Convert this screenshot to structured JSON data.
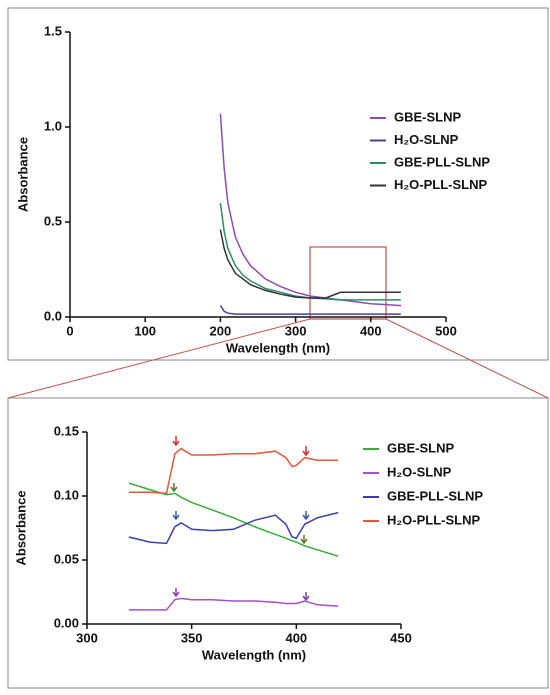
{
  "chart_data": [
    {
      "type": "line",
      "xlabel": "Wavelength (nm)",
      "ylabel": "Absorbance",
      "x": [
        200,
        205,
        210,
        220,
        230,
        240,
        260,
        280,
        300,
        320,
        340,
        360,
        380,
        400,
        420,
        440
      ],
      "series": [
        {
          "name": "GBE-SLNP",
          "color": "#8e4bb0",
          "values": [
            1.07,
            0.78,
            0.6,
            0.42,
            0.33,
            0.27,
            0.2,
            0.16,
            0.13,
            0.11,
            0.1,
            0.09,
            0.08,
            0.07,
            0.065,
            0.06
          ]
        },
        {
          "name": "H₂O-SLNP",
          "color": "#4b3f9e",
          "values": [
            0.06,
            0.03,
            0.02,
            0.015,
            0.015,
            0.015,
            0.015,
            0.015,
            0.015,
            0.015,
            0.015,
            0.015,
            0.015,
            0.015,
            0.015,
            0.015
          ]
        },
        {
          "name": "GBE-PLL-SLNP",
          "color": "#2e8b6e",
          "values": [
            0.6,
            0.45,
            0.36,
            0.27,
            0.22,
            0.19,
            0.15,
            0.13,
            0.11,
            0.1,
            0.095,
            0.09,
            0.09,
            0.09,
            0.09,
            0.09
          ]
        },
        {
          "name": "H₂O-PLL-SLNP",
          "color": "#333333",
          "values": [
            0.46,
            0.36,
            0.3,
            0.23,
            0.2,
            0.17,
            0.14,
            0.12,
            0.105,
            0.1,
            0.1,
            0.13,
            0.13,
            0.13,
            0.13,
            0.13
          ]
        }
      ],
      "xlim": [
        0,
        500
      ],
      "xticks": [
        0,
        100,
        200,
        300,
        400,
        500
      ],
      "ylim": [
        0,
        1.5
      ],
      "yticks": [
        {
          "value": 0,
          "label": "0.0"
        },
        0.5,
        {
          "value": 1,
          "label": "1.0"
        },
        1.5
      ]
    },
    {
      "type": "line",
      "xlabel": "Wavelength (nm)",
      "ylabel": "Absorbance",
      "x": [
        320,
        330,
        338,
        342,
        345,
        350,
        360,
        370,
        380,
        390,
        395,
        398,
        400,
        404,
        410,
        420
      ],
      "series": [
        {
          "name": "GBE-SLNP",
          "color": "#3aaa3a",
          "values": [
            0.11,
            0.105,
            0.101,
            0.102,
            0.099,
            0.095,
            0.089,
            0.083,
            0.076,
            0.07,
            0.067,
            0.065,
            0.064,
            0.061,
            0.058,
            0.053
          ]
        },
        {
          "name": "H₂O-SLNP",
          "color": "#a450c8",
          "values": [
            0.011,
            0.011,
            0.011,
            0.019,
            0.02,
            0.019,
            0.019,
            0.018,
            0.018,
            0.017,
            0.016,
            0.016,
            0.016,
            0.018,
            0.015,
            0.014
          ]
        },
        {
          "name": "GBE-PLL-SLNP",
          "color": "#3a3ea8",
          "values": [
            0.068,
            0.064,
            0.063,
            0.076,
            0.079,
            0.074,
            0.073,
            0.074,
            0.081,
            0.085,
            0.078,
            0.068,
            0.067,
            0.078,
            0.083,
            0.087
          ]
        },
        {
          "name": "H₂O-PLL-SLNP",
          "color": "#e05a3a",
          "values": [
            0.103,
            0.103,
            0.102,
            0.133,
            0.137,
            0.132,
            0.132,
            0.133,
            0.133,
            0.135,
            0.13,
            0.123,
            0.124,
            0.13,
            0.128,
            0.128
          ]
        }
      ],
      "xlim": [
        300,
        450
      ],
      "xticks": [
        300,
        350,
        400,
        450
      ],
      "ylim": [
        0,
        0.15
      ],
      "yticks": [
        {
          "value": 0,
          "label": "0.00"
        },
        {
          "value": 0.05,
          "label": "0.05"
        },
        {
          "value": 0.1,
          "label": "0.10"
        },
        {
          "value": 0.15,
          "label": "0.15"
        }
      ]
    }
  ]
}
